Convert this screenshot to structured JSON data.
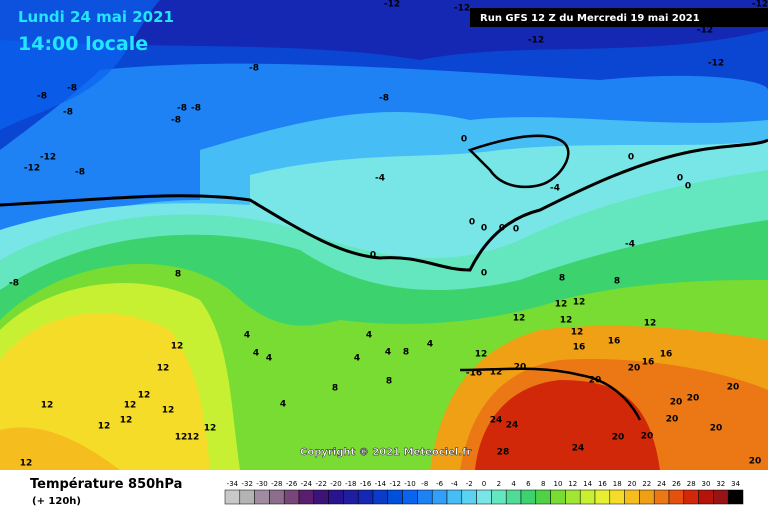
{
  "header": {
    "date": "Lundi 24 mai 2021",
    "time": "14:00 locale",
    "run": "Run GFS 12 Z du Mercredi 19 mai 2021"
  },
  "map": {
    "copyright": "Copyright © 2021 Meteociel.fr",
    "contour_labels": [
      -12,
      -12,
      -12,
      -12,
      -12,
      -8,
      -12,
      -8,
      -8,
      -8,
      -8,
      -8,
      -8,
      -8,
      -12,
      -12,
      -8,
      -4,
      0,
      0,
      0,
      0,
      -4,
      -4,
      0,
      0,
      0,
      0,
      0,
      0,
      -8,
      8,
      8,
      8,
      12,
      12,
      12,
      12,
      12,
      12,
      16,
      16,
      16,
      16,
      4,
      4,
      4,
      4,
      4,
      4,
      4,
      8,
      12,
      12,
      -16,
      12,
      12,
      12,
      12,
      12,
      12,
      12,
      12,
      12,
      12,
      12,
      12,
      8,
      8,
      4,
      20,
      20,
      20,
      20,
      20,
      20,
      20,
      20,
      20,
      20,
      20,
      24,
      24,
      24,
      28
    ]
  },
  "footer": {
    "parameter": "Température 850hPa",
    "lead_time": "(+ 120h)"
  },
  "scale": {
    "values": [
      -34,
      -32,
      -30,
      -28,
      -26,
      -24,
      -22,
      -20,
      -18,
      -16,
      -14,
      -12,
      -10,
      -8,
      -6,
      -4,
      -2,
      0,
      2,
      4,
      6,
      8,
      10,
      12,
      14,
      16,
      18,
      20,
      22,
      24,
      26,
      28,
      30,
      32,
      34
    ],
    "colors": [
      "#c8c8c8",
      "#b4b4b4",
      "#a08ca0",
      "#8c6e8c",
      "#784678",
      "#5a1e6e",
      "#3c1478",
      "#28148c",
      "#1e1ea0",
      "#1428b4",
      "#0a3cc8",
      "#0050dc",
      "#0a64f0",
      "#1e82f5",
      "#32a0fa",
      "#46bef5",
      "#5ad2f0",
      "#78e6e6",
      "#64e6be",
      "#50dc96",
      "#3cd26e",
      "#50d246",
      "#78dc32",
      "#a0e632",
      "#c8f032",
      "#e6f032",
      "#f5dc28",
      "#f5be1e",
      "#f0a014",
      "#eb7814",
      "#e6500f",
      "#d2280a",
      "#b4140a",
      "#961414",
      "#000000"
    ]
  }
}
